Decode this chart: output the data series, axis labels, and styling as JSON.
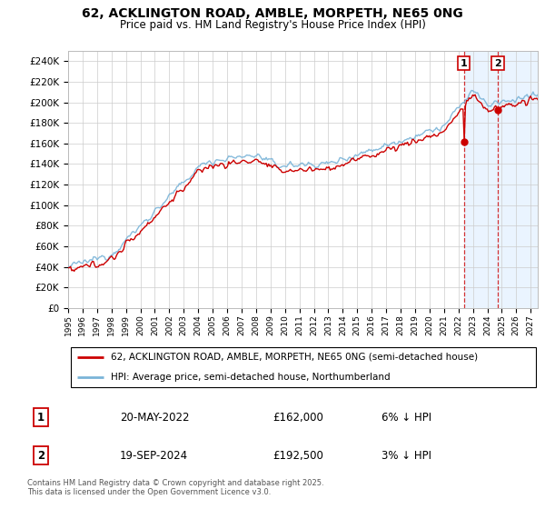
{
  "title_line1": "62, ACKLINGTON ROAD, AMBLE, MORPETH, NE65 0NG",
  "title_line2": "Price paid vs. HM Land Registry's House Price Index (HPI)",
  "ylabel_ticks": [
    "£0",
    "£20K",
    "£40K",
    "£60K",
    "£80K",
    "£100K",
    "£120K",
    "£140K",
    "£160K",
    "£180K",
    "£200K",
    "£220K",
    "£240K"
  ],
  "ylim": [
    0,
    250000
  ],
  "xlim_start": 1995.0,
  "xlim_end": 2027.5,
  "hpi_color": "#7ab4d8",
  "price_color": "#cc0000",
  "dashed_line_color": "#cc0000",
  "shaded_color": "#ddeeff",
  "legend_label_price": "62, ACKLINGTON ROAD, AMBLE, MORPETH, NE65 0NG (semi-detached house)",
  "legend_label_hpi": "HPI: Average price, semi-detached house, Northumberland",
  "sale1_label": "1",
  "sale1_date": "20-MAY-2022",
  "sale1_price": "£162,000",
  "sale1_hpi": "6% ↓ HPI",
  "sale1_x": 2022.38,
  "sale1_y": 162000,
  "sale2_label": "2",
  "sale2_date": "19-SEP-2024",
  "sale2_price": "£192,500",
  "sale2_hpi": "3% ↓ HPI",
  "sale2_x": 2024.72,
  "sale2_y": 192500,
  "shade_start": 2022.38,
  "hatch_start": 2024.72,
  "footer": "Contains HM Land Registry data © Crown copyright and database right 2025.\nThis data is licensed under the Open Government Licence v3.0.",
  "background_color": "#ffffff",
  "grid_color": "#cccccc"
}
